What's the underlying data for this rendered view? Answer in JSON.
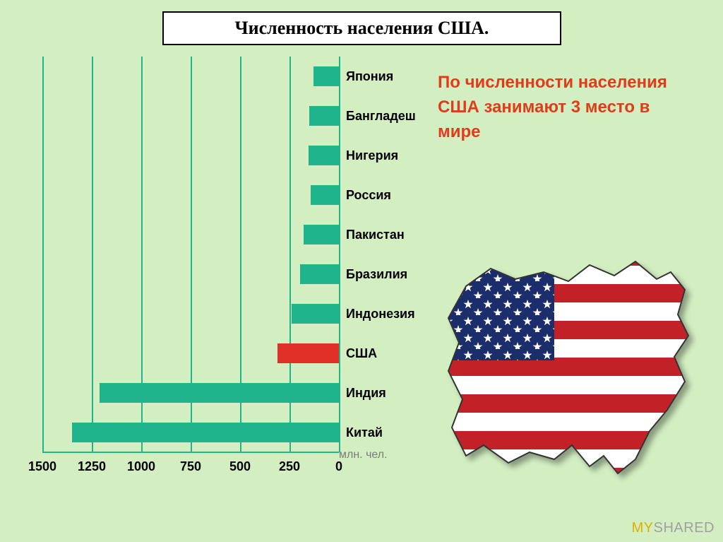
{
  "background_color": "#d3efc2",
  "title": "Численность населения США.",
  "title_fontsize": 26,
  "title_color": "#000000",
  "chart": {
    "type": "bar",
    "orientation": "horizontal",
    "x_reversed": true,
    "xlim": [
      0,
      1500
    ],
    "xtick_step": 250,
    "xticks": [
      1500,
      1250,
      1000,
      750,
      500,
      250,
      0
    ],
    "xtick_fontsize": 18,
    "xtick_color": "#000000",
    "x_title": "млн. чел.",
    "x_title_fontsize": 16,
    "x_title_color": "#7a7a7a",
    "axis_color": "#1fb48c",
    "grid_color": "#1fb48c",
    "bar_default_color": "#1fb48c",
    "highlight_color": "#e03028",
    "label_fontsize": 18,
    "label_color": "#000000",
    "bar_height_ratio": 0.5,
    "categories": [
      {
        "label": "Япония",
        "value": 127,
        "color": "#1fb48c"
      },
      {
        "label": "Бангладеш",
        "value": 150,
        "color": "#1fb48c"
      },
      {
        "label": "Нигерия",
        "value": 155,
        "color": "#1fb48c"
      },
      {
        "label": "Россия",
        "value": 143,
        "color": "#1fb48c"
      },
      {
        "label": "Пакистан",
        "value": 180,
        "color": "#1fb48c"
      },
      {
        "label": "Бразилия",
        "value": 195,
        "color": "#1fb48c"
      },
      {
        "label": "Индонезия",
        "value": 240,
        "color": "#1fb48c"
      },
      {
        "label": "США",
        "value": 310,
        "color": "#e03028"
      },
      {
        "label": "Индия",
        "value": 1210,
        "color": "#1fb48c"
      },
      {
        "label": "Китай",
        "value": 1350,
        "color": "#1fb48c"
      }
    ]
  },
  "callout": {
    "text": "По численности населения США занимают 3 место в мире",
    "color": "#e23b1a",
    "fontsize": 24
  },
  "flag_colors": {
    "red": "#c22127",
    "white": "#ffffff",
    "blue": "#1b2e6b",
    "star": "#ffffff",
    "outline": "#333333"
  },
  "watermark": {
    "part1": "MY",
    "part2": "SHARED"
  }
}
